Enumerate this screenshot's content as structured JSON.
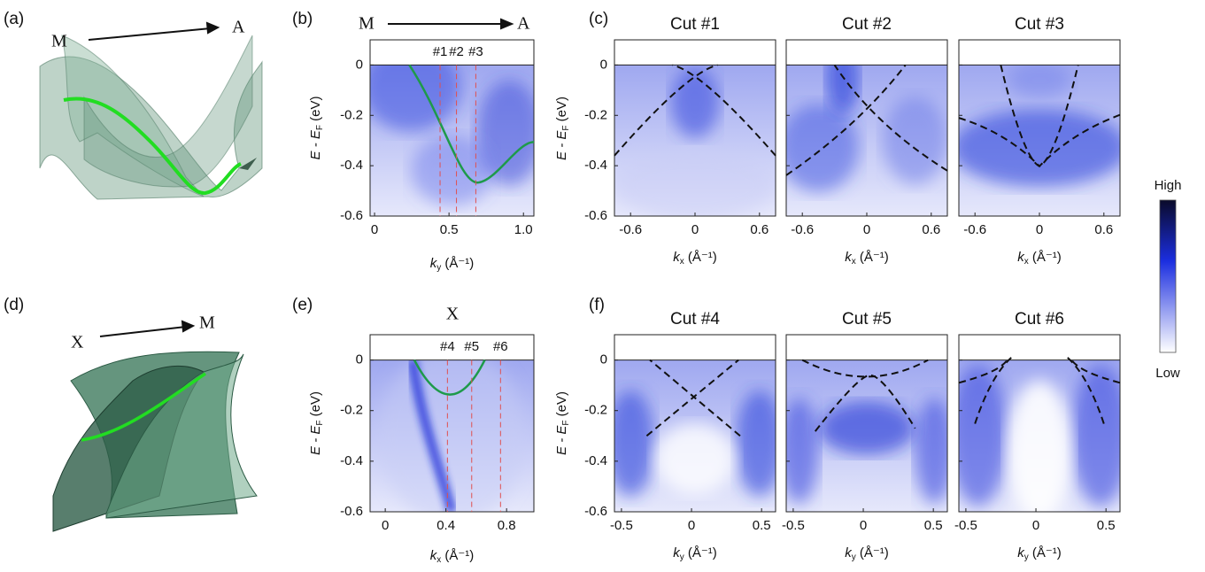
{
  "figure": {
    "a": {
      "label": "(a)",
      "from": "M",
      "to": "A"
    },
    "d": {
      "label": "(d)",
      "from": "X",
      "to": "M"
    },
    "b": {
      "label": "(b)",
      "from": "M",
      "to": "A",
      "x_label": {
        "main": "k",
        "sub": "y",
        "unit": " (Å⁻¹)"
      },
      "y_label": {
        "main": "E - E",
        "sub": "F",
        "unit": " (eV)"
      },
      "xlim": [
        -0.03,
        1.07
      ],
      "ylim": [
        -0.6,
        0.1
      ],
      "xticks": [
        0,
        0.5,
        {
          "value": 1,
          "label": "1.0"
        }
      ],
      "yticks": [
        0,
        -0.2,
        -0.4,
        -0.6
      ],
      "cuts": [
        {
          "label": "#1",
          "x": 0.44
        },
        {
          "label": "#2",
          "x": 0.55
        },
        {
          "label": "#3",
          "x": 0.68
        }
      ]
    },
    "c": {
      "label": "(c)",
      "y_label": {
        "main": "E - E",
        "sub": "F",
        "unit": " (eV)"
      },
      "ylim": [
        -0.6,
        0.1
      ],
      "yticks": [
        0,
        -0.2,
        -0.4,
        -0.6
      ],
      "panels": [
        {
          "title": "Cut #1",
          "x_label": {
            "main": "k",
            "sub": "x",
            "unit": " (Å⁻¹)"
          },
          "xlim": [
            -0.75,
            0.75
          ],
          "xticks": [
            -0.6,
            0,
            0.6
          ]
        },
        {
          "title": "Cut #2",
          "x_label": {
            "main": "k",
            "sub": "x",
            "unit": " (Å⁻¹)"
          },
          "xlim": [
            -0.75,
            0.75
          ],
          "xticks": [
            -0.6,
            0,
            0.6
          ]
        },
        {
          "title": "Cut #3",
          "x_label": {
            "main": "k",
            "sub": "x",
            "unit": " (Å⁻¹)"
          },
          "xlim": [
            -0.75,
            0.75
          ],
          "xticks": [
            -0.6,
            0,
            0.6
          ]
        }
      ]
    },
    "e": {
      "label": "(e)",
      "point": "X",
      "x_label": {
        "main": "k",
        "sub": "x",
        "unit": " (Å⁻¹)"
      },
      "y_label": {
        "main": "E - E",
        "sub": "F",
        "unit": " (eV)"
      },
      "xlim": [
        -0.1,
        0.98
      ],
      "ylim": [
        -0.6,
        0.1
      ],
      "xticks": [
        0,
        0.4,
        0.8
      ],
      "yticks": [
        0,
        -0.2,
        -0.4,
        -0.6
      ],
      "cuts": [
        {
          "label": "#4",
          "x": 0.41
        },
        {
          "label": "#5",
          "x": 0.57
        },
        {
          "label": "#6",
          "x": 0.76
        }
      ]
    },
    "f": {
      "label": "(f)",
      "y_label": {
        "main": "E - E",
        "sub": "F",
        "unit": " (eV)"
      },
      "ylim": [
        -0.6,
        0.1
      ],
      "yticks": [
        0,
        -0.2,
        -0.4,
        -0.6
      ],
      "panels": [
        {
          "title": "Cut #4",
          "x_label": {
            "main": "k",
            "sub": "y",
            "unit": " (Å⁻¹)"
          },
          "xlim": [
            -0.55,
            0.6
          ],
          "xticks": [
            -0.5,
            0,
            0.5
          ]
        },
        {
          "title": "Cut #5",
          "x_label": {
            "main": "k",
            "sub": "y",
            "unit": " (Å⁻¹)"
          },
          "xlim": [
            -0.55,
            0.6
          ],
          "xticks": [
            -0.5,
            0,
            0.5
          ]
        },
        {
          "title": "Cut #6",
          "x_label": {
            "main": "k",
            "sub": "y",
            "unit": " (Å⁻¹)"
          },
          "xlim": [
            -0.55,
            0.6
          ],
          "xticks": [
            -0.5,
            0,
            0.5
          ]
        }
      ]
    },
    "colorbar": {
      "high": "High",
      "low": "Low"
    }
  }
}
